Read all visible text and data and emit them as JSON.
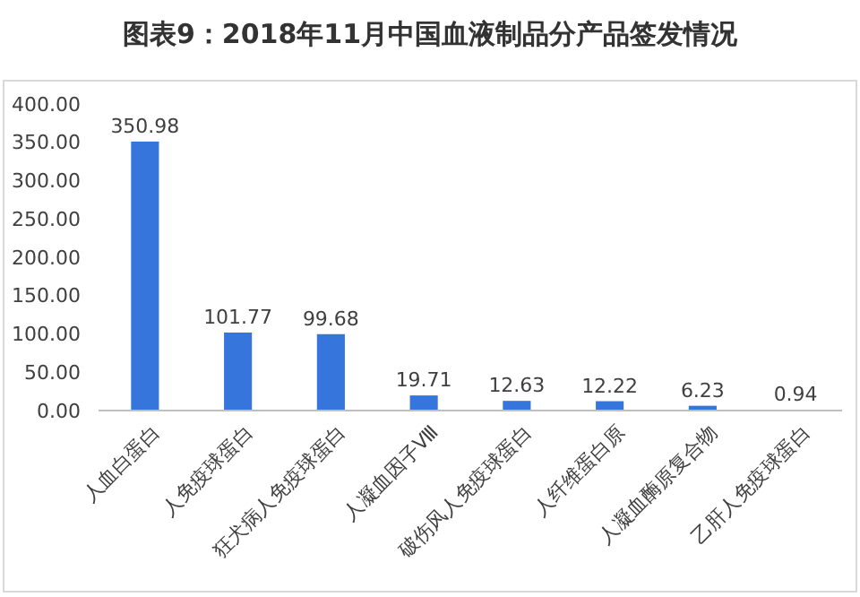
{
  "chart_data": {
    "type": "bar",
    "title": "图表9：2018年11月中国血液制品分产品签发情况",
    "categories": [
      "人血白蛋白",
      "人免疫球蛋白",
      "狂犬病人免疫球蛋白",
      "人凝血因子Ⅷ",
      "破伤风人免疫球蛋白",
      "人纤维蛋白原",
      "人凝血酶原复合物",
      "乙肝人免疫球蛋白"
    ],
    "values": [
      350.98,
      101.77,
      99.68,
      19.71,
      12.63,
      12.22,
      6.23,
      0.94
    ],
    "value_labels": [
      "350.98",
      "101.77",
      "99.68",
      "19.71",
      "12.63",
      "12.22",
      "6.23",
      "0.94"
    ],
    "color": "#3575dc",
    "ylim": [
      0,
      400
    ],
    "yticks": [
      {
        "value": 0,
        "label": "0.00"
      },
      {
        "value": 50,
        "label": "50.00"
      },
      {
        "value": 100,
        "label": "100.00"
      },
      {
        "value": 150,
        "label": "150.00"
      },
      {
        "value": 200,
        "label": "200.00"
      },
      {
        "value": 250,
        "label": "250.00"
      },
      {
        "value": 300,
        "label": "300.00"
      },
      {
        "value": 350,
        "label": "350.00"
      },
      {
        "value": 400,
        "label": "400.00"
      }
    ]
  }
}
